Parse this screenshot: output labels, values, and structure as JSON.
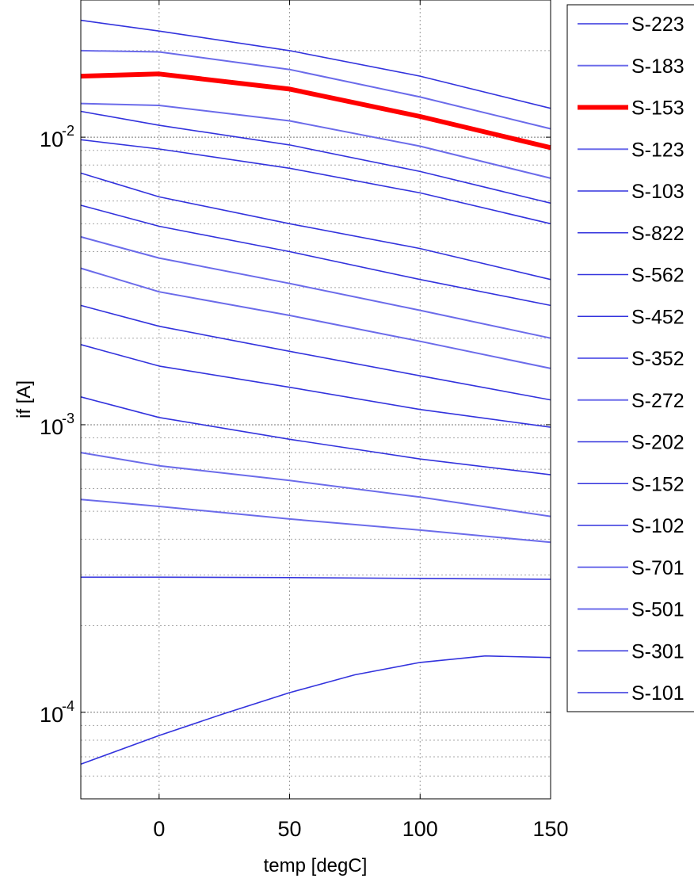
{
  "chart_data": {
    "type": "line",
    "title": "",
    "xlabel": "temp [degC]",
    "ylabel": "if [A]",
    "xlim": [
      -30,
      150
    ],
    "ylim": [
      5e-05,
      0.03
    ],
    "yscale": "log",
    "grid": true,
    "legend_position": "outside-right",
    "x_ticks": [
      0,
      50,
      100,
      150
    ],
    "y_ticks": [
      {
        "base": "10",
        "exp": "-4",
        "value": 0.0001
      },
      {
        "base": "10",
        "exp": "-3",
        "value": 0.001
      },
      {
        "base": "10",
        "exp": "-2",
        "value": 0.01
      }
    ],
    "colors": {
      "normal": "#3333dd",
      "light": "#6b6bea",
      "highlight": "#ff0000"
    },
    "series": [
      {
        "name": "S-223",
        "x": [
          -30,
          0,
          50,
          100,
          150
        ],
        "y": [
          0.0255,
          0.0234,
          0.02,
          0.0163,
          0.0126
        ],
        "style": "normal"
      },
      {
        "name": "S-183",
        "x": [
          -30,
          0,
          50,
          100,
          150
        ],
        "y": [
          0.02,
          0.0198,
          0.0172,
          0.0138,
          0.0107
        ],
        "style": "light"
      },
      {
        "name": "S-153",
        "x": [
          -30,
          0,
          50,
          100,
          150
        ],
        "y": [
          0.0163,
          0.0166,
          0.0147,
          0.0118,
          0.0092
        ],
        "style": "highlight"
      },
      {
        "name": "S-123",
        "x": [
          -30,
          0,
          50,
          100,
          150
        ],
        "y": [
          0.0131,
          0.0129,
          0.0114,
          0.0093,
          0.0072
        ],
        "style": "light"
      },
      {
        "name": "S-103",
        "x": [
          -30,
          0,
          50,
          100,
          150
        ],
        "y": [
          0.0123,
          0.011,
          0.0094,
          0.0076,
          0.0059
        ],
        "style": "normal"
      },
      {
        "name": "S-822",
        "x": [
          -30,
          0,
          50,
          100,
          150
        ],
        "y": [
          0.0098,
          0.0091,
          0.0078,
          0.0064,
          0.005
        ],
        "style": "normal"
      },
      {
        "name": "S-562",
        "x": [
          -30,
          0,
          50,
          100,
          150
        ],
        "y": [
          0.0075,
          0.0062,
          0.005,
          0.0041,
          0.0032
        ],
        "style": "normal"
      },
      {
        "name": "S-452",
        "x": [
          -30,
          0,
          50,
          100,
          150
        ],
        "y": [
          0.0058,
          0.0049,
          0.004,
          0.0032,
          0.0026
        ],
        "style": "normal"
      },
      {
        "name": "S-352",
        "x": [
          -30,
          0,
          50,
          100,
          150
        ],
        "y": [
          0.0045,
          0.0038,
          0.0031,
          0.0025,
          0.002
        ],
        "style": "light"
      },
      {
        "name": "S-272",
        "x": [
          -30,
          0,
          50,
          100,
          150
        ],
        "y": [
          0.0035,
          0.0029,
          0.0024,
          0.00195,
          0.00157
        ],
        "style": "light"
      },
      {
        "name": "S-202",
        "x": [
          -30,
          0,
          50,
          100,
          150
        ],
        "y": [
          0.0026,
          0.0022,
          0.0018,
          0.00148,
          0.00122
        ],
        "style": "normal"
      },
      {
        "name": "S-152",
        "x": [
          -30,
          0,
          50,
          100,
          150
        ],
        "y": [
          0.0019,
          0.0016,
          0.00135,
          0.00113,
          0.00098
        ],
        "style": "normal"
      },
      {
        "name": "S-102",
        "x": [
          -30,
          0,
          50,
          100,
          150
        ],
        "y": [
          0.00125,
          0.00106,
          0.00089,
          0.00076,
          0.00067
        ],
        "style": "normal"
      },
      {
        "name": "S-701",
        "x": [
          -30,
          0,
          50,
          100,
          150
        ],
        "y": [
          0.0008,
          0.00072,
          0.00064,
          0.00056,
          0.00048
        ],
        "style": "light"
      },
      {
        "name": "S-501",
        "x": [
          -30,
          0,
          50,
          100,
          150
        ],
        "y": [
          0.00055,
          0.00052,
          0.00047,
          0.00043,
          0.00039
        ],
        "style": "light"
      },
      {
        "name": "S-301",
        "x": [
          -30,
          0,
          50,
          100,
          150
        ],
        "y": [
          0.000295,
          0.000295,
          0.000294,
          0.000292,
          0.00029
        ],
        "style": "normal"
      },
      {
        "name": "S-101",
        "x": [
          -30,
          0,
          25,
          50,
          75,
          100,
          125,
          150
        ],
        "y": [
          6.6e-05,
          8.3e-05,
          9.9e-05,
          0.000117,
          0.000135,
          0.000149,
          0.000157,
          0.000155
        ],
        "style": "normal"
      }
    ]
  }
}
